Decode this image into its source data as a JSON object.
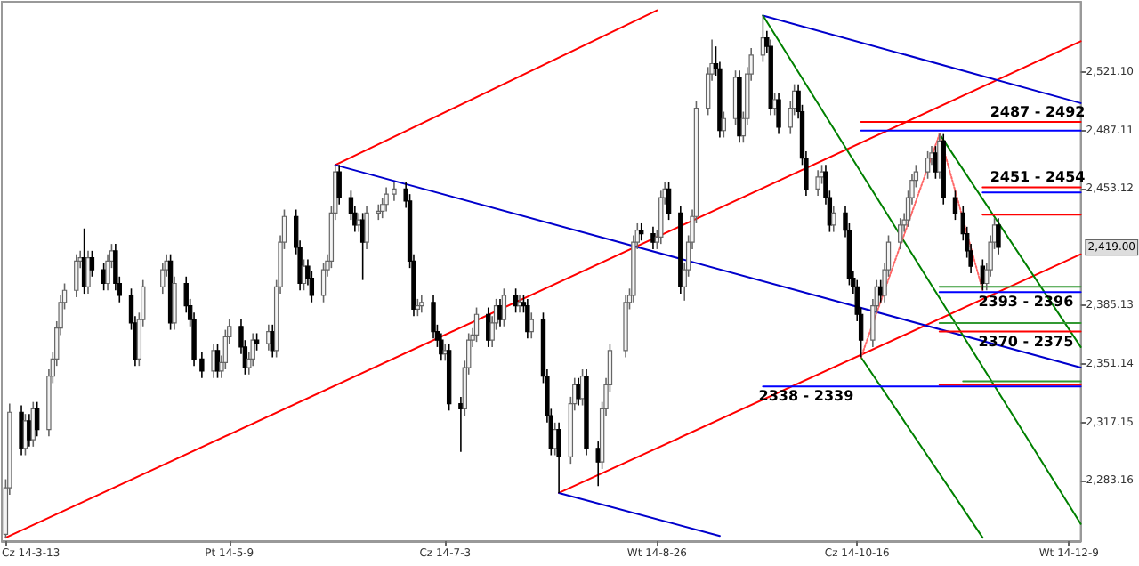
{
  "chart_data": {
    "type": "candlestick",
    "x": [
      "2014-03-13",
      "2014-03-14",
      "2014-03-17",
      "2014-03-18",
      "2014-03-19",
      "2014-03-20",
      "2014-03-21",
      "2014-03-24",
      "2014-03-25",
      "2014-03-26",
      "2014-03-27",
      "2014-03-28",
      "2014-03-31",
      "2014-04-01",
      "2014-04-02",
      "2014-04-03",
      "2014-04-04",
      "2014-04-07",
      "2014-04-08",
      "2014-04-09",
      "2014-04-10",
      "2014-04-11",
      "2014-04-14",
      "2014-04-15",
      "2014-04-16",
      "2014-04-17",
      "2014-04-22",
      "2014-04-23",
      "2014-04-24",
      "2014-04-25",
      "2014-04-28",
      "2014-04-29",
      "2014-04-30",
      "2014-05-02",
      "2014-05-05",
      "2014-05-06",
      "2014-05-07",
      "2014-05-08",
      "2014-05-09",
      "2014-05-12",
      "2014-05-13",
      "2014-05-14",
      "2014-05-15",
      "2014-05-16",
      "2014-05-19",
      "2014-05-20",
      "2014-05-21",
      "2014-05-22",
      "2014-05-23",
      "2014-05-26",
      "2014-05-27",
      "2014-05-28",
      "2014-05-29",
      "2014-05-30",
      "2014-06-02",
      "2014-06-03",
      "2014-06-04",
      "2014-06-05",
      "2014-06-06",
      "2014-06-09",
      "2014-06-10",
      "2014-06-11",
      "2014-06-12",
      "2014-06-13",
      "2014-06-16",
      "2014-06-17",
      "2014-06-18",
      "2014-06-20",
      "2014-06-23",
      "2014-06-24",
      "2014-06-25",
      "2014-06-26",
      "2014-06-27",
      "2014-06-30",
      "2014-07-01",
      "2014-07-02",
      "2014-07-03",
      "2014-07-04",
      "2014-07-07",
      "2014-07-08",
      "2014-07-09",
      "2014-07-10",
      "2014-07-11",
      "2014-07-14",
      "2014-07-15",
      "2014-07-16",
      "2014-07-17",
      "2014-07-18",
      "2014-07-21",
      "2014-07-22",
      "2014-07-23",
      "2014-07-24",
      "2014-07-25",
      "2014-07-28",
      "2014-07-29",
      "2014-07-30",
      "2014-07-31",
      "2014-08-01",
      "2014-08-04",
      "2014-08-05",
      "2014-08-06",
      "2014-08-07",
      "2014-08-08",
      "2014-08-11",
      "2014-08-12",
      "2014-08-13",
      "2014-08-14",
      "2014-08-18",
      "2014-08-19",
      "2014-08-20",
      "2014-08-21",
      "2014-08-22",
      "2014-08-25",
      "2014-08-26",
      "2014-08-27",
      "2014-08-28",
      "2014-08-29",
      "2014-09-01",
      "2014-09-02",
      "2014-09-03",
      "2014-09-04",
      "2014-09-05",
      "2014-09-08",
      "2014-09-09",
      "2014-09-10",
      "2014-09-11",
      "2014-09-12",
      "2014-09-15",
      "2014-09-16",
      "2014-09-17",
      "2014-09-18",
      "2014-09-19",
      "2014-09-22",
      "2014-09-23",
      "2014-09-24",
      "2014-09-25",
      "2014-09-26",
      "2014-09-29",
      "2014-09-30",
      "2014-10-01",
      "2014-10-02",
      "2014-10-03",
      "2014-10-06",
      "2014-10-07",
      "2014-10-08",
      "2014-10-09",
      "2014-10-10",
      "2014-10-13",
      "2014-10-14",
      "2014-10-15",
      "2014-10-16",
      "2014-10-17",
      "2014-10-20",
      "2014-10-21",
      "2014-10-22",
      "2014-10-23",
      "2014-10-24",
      "2014-10-27",
      "2014-10-28",
      "2014-10-29",
      "2014-10-30",
      "2014-10-31",
      "2014-11-03",
      "2014-11-04",
      "2014-11-05",
      "2014-11-06",
      "2014-11-07",
      "2014-11-10",
      "2014-11-12",
      "2014-11-13",
      "2014-11-14",
      "2014-11-17",
      "2014-11-18",
      "2014-11-19",
      "2014-11-20",
      "2014-11-21"
    ],
    "ohlc": [
      [
        2252,
        2284,
        2250,
        2279
      ],
      [
        2279,
        2328,
        2275,
        2323
      ],
      [
        2323,
        2327,
        2298,
        2302
      ],
      [
        2302,
        2322,
        2298,
        2318
      ],
      [
        2318,
        2322,
        2303,
        2307
      ],
      [
        2307,
        2329,
        2303,
        2325
      ],
      [
        2325,
        2329,
        2309,
        2313
      ],
      [
        2313,
        2348,
        2309,
        2344
      ],
      [
        2344,
        2358,
        2340,
        2354
      ],
      [
        2354,
        2376,
        2350,
        2372
      ],
      [
        2372,
        2391,
        2368,
        2387
      ],
      [
        2387,
        2398,
        2383,
        2394
      ],
      [
        2394,
        2415,
        2390,
        2411
      ],
      [
        2411,
        2417,
        2407,
        2413
      ],
      [
        2413,
        2430,
        2392,
        2396
      ],
      [
        2396,
        2417,
        2392,
        2413
      ],
      [
        2413,
        2417,
        2402,
        2406
      ],
      [
        2406,
        2410,
        2394,
        2398
      ],
      [
        2398,
        2415,
        2394,
        2411
      ],
      [
        2411,
        2421,
        2407,
        2417
      ],
      [
        2417,
        2421,
        2394,
        2398
      ],
      [
        2398,
        2402,
        2387,
        2391
      ],
      [
        2391,
        2395,
        2371,
        2375
      ],
      [
        2375,
        2379,
        2350,
        2354
      ],
      [
        2354,
        2381,
        2350,
        2377
      ],
      [
        2377,
        2400,
        2373,
        2396
      ],
      [
        2396,
        2410,
        2392,
        2406
      ],
      [
        2406,
        2415,
        2402,
        2411
      ],
      [
        2411,
        2415,
        2371,
        2375
      ],
      [
        2375,
        2402,
        2371,
        2398
      ],
      [
        2398,
        2402,
        2381,
        2385
      ],
      [
        2385,
        2389,
        2373,
        2377
      ],
      [
        2377,
        2381,
        2350,
        2354
      ],
      [
        2354,
        2358,
        2343,
        2347
      ],
      [
        2347,
        2363,
        2343,
        2359
      ],
      [
        2359,
        2363,
        2343,
        2347
      ],
      [
        2347,
        2356,
        2343,
        2352
      ],
      [
        2352,
        2371,
        2348,
        2367
      ],
      [
        2367,
        2377,
        2363,
        2373
      ],
      [
        2373,
        2377,
        2357,
        2361
      ],
      [
        2361,
        2365,
        2345,
        2349
      ],
      [
        2349,
        2358,
        2345,
        2354
      ],
      [
        2354,
        2369,
        2350,
        2365
      ],
      [
        2365,
        2369,
        2359,
        2363
      ],
      [
        2363,
        2374,
        2359,
        2370
      ],
      [
        2370,
        2374,
        2355,
        2359
      ],
      [
        2359,
        2400,
        2355,
        2396
      ],
      [
        2396,
        2426,
        2392,
        2422
      ],
      [
        2422,
        2441,
        2418,
        2437
      ],
      [
        2437,
        2441,
        2415,
        2419
      ],
      [
        2419,
        2423,
        2394,
        2398
      ],
      [
        2398,
        2412,
        2394,
        2408
      ],
      [
        2408,
        2412,
        2397,
        2401
      ],
      [
        2401,
        2405,
        2387,
        2391
      ],
      [
        2391,
        2410,
        2387,
        2406
      ],
      [
        2406,
        2415,
        2402,
        2411
      ],
      [
        2411,
        2443,
        2407,
        2439
      ],
      [
        2439,
        2467,
        2435,
        2463
      ],
      [
        2463,
        2467,
        2444,
        2448
      ],
      [
        2448,
        2452,
        2435,
        2439
      ],
      [
        2439,
        2443,
        2428,
        2432
      ],
      [
        2432,
        2439,
        2428,
        2435
      ],
      [
        2435,
        2439,
        2400,
        2422
      ],
      [
        2422,
        2443,
        2418,
        2439
      ],
      [
        2439,
        2444,
        2435,
        2440
      ],
      [
        2440,
        2448,
        2436,
        2444
      ],
      [
        2444,
        2454,
        2440,
        2450
      ],
      [
        2450,
        2457,
        2446,
        2453
      ],
      [
        2453,
        2457,
        2442,
        2446
      ],
      [
        2446,
        2450,
        2407,
        2411
      ],
      [
        2411,
        2415,
        2379,
        2383
      ],
      [
        2383,
        2389,
        2379,
        2385
      ],
      [
        2385,
        2391,
        2381,
        2387
      ],
      [
        2387,
        2391,
        2366,
        2370
      ],
      [
        2370,
        2374,
        2361,
        2365
      ],
      [
        2365,
        2369,
        2353,
        2357
      ],
      [
        2357,
        2363,
        2353,
        2359
      ],
      [
        2359,
        2363,
        2324,
        2328
      ],
      [
        2328,
        2332,
        2300,
        2325
      ],
      [
        2325,
        2353,
        2321,
        2349
      ],
      [
        2349,
        2369,
        2345,
        2365
      ],
      [
        2365,
        2372,
        2361,
        2368
      ],
      [
        2368,
        2384,
        2364,
        2380
      ],
      [
        2380,
        2384,
        2361,
        2365
      ],
      [
        2365,
        2379,
        2361,
        2375
      ],
      [
        2375,
        2389,
        2371,
        2385
      ],
      [
        2385,
        2389,
        2373,
        2377
      ],
      [
        2377,
        2395,
        2373,
        2391
      ],
      [
        2391,
        2395,
        2381,
        2385
      ],
      [
        2385,
        2391,
        2381,
        2387
      ],
      [
        2387,
        2391,
        2381,
        2385
      ],
      [
        2385,
        2389,
        2366,
        2370
      ],
      [
        2370,
        2381,
        2366,
        2377
      ],
      [
        2377,
        2381,
        2340,
        2344
      ],
      [
        2344,
        2348,
        2317,
        2321
      ],
      [
        2321,
        2325,
        2298,
        2302
      ],
      [
        2302,
        2317,
        2298,
        2313
      ],
      [
        2313,
        2317,
        2276,
        2297
      ],
      [
        2297,
        2332,
        2293,
        2328
      ],
      [
        2328,
        2343,
        2324,
        2339
      ],
      [
        2339,
        2343,
        2327,
        2331
      ],
      [
        2331,
        2348,
        2327,
        2344
      ],
      [
        2344,
        2348,
        2298,
        2302
      ],
      [
        2302,
        2306,
        2280,
        2294
      ],
      [
        2294,
        2329,
        2290,
        2325
      ],
      [
        2325,
        2343,
        2321,
        2339
      ],
      [
        2339,
        2363,
        2335,
        2359
      ],
      [
        2359,
        2391,
        2355,
        2387
      ],
      [
        2387,
        2395,
        2383,
        2391
      ],
      [
        2391,
        2426,
        2387,
        2422
      ],
      [
        2422,
        2433,
        2418,
        2429
      ],
      [
        2429,
        2433,
        2423,
        2427
      ],
      [
        2427,
        2431,
        2418,
        2422
      ],
      [
        2422,
        2429,
        2418,
        2425
      ],
      [
        2425,
        2452,
        2421,
        2448
      ],
      [
        2448,
        2457,
        2444,
        2453
      ],
      [
        2453,
        2457,
        2435,
        2439
      ],
      [
        2439,
        2443,
        2392,
        2396
      ],
      [
        2396,
        2410,
        2388,
        2406
      ],
      [
        2406,
        2426,
        2402,
        2422
      ],
      [
        2422,
        2441,
        2418,
        2437
      ],
      [
        2437,
        2504,
        2433,
        2500
      ],
      [
        2500,
        2524,
        2496,
        2520
      ],
      [
        2520,
        2540,
        2516,
        2526
      ],
      [
        2526,
        2536,
        2519,
        2523
      ],
      [
        2523,
        2527,
        2483,
        2487
      ],
      [
        2487,
        2498,
        2483,
        2494
      ],
      [
        2494,
        2522,
        2490,
        2518
      ],
      [
        2518,
        2522,
        2480,
        2484
      ],
      [
        2484,
        2498,
        2480,
        2494
      ],
      [
        2494,
        2524,
        2490,
        2520
      ],
      [
        2520,
        2535,
        2516,
        2531
      ],
      [
        2531,
        2554,
        2527,
        2541
      ],
      [
        2541,
        2545,
        2532,
        2536
      ],
      [
        2536,
        2540,
        2496,
        2500
      ],
      [
        2500,
        2509,
        2496,
        2505
      ],
      [
        2505,
        2509,
        2485,
        2489
      ],
      [
        2489,
        2504,
        2485,
        2500
      ],
      [
        2500,
        2514,
        2496,
        2510
      ],
      [
        2510,
        2514,
        2494,
        2498
      ],
      [
        2498,
        2502,
        2467,
        2471
      ],
      [
        2471,
        2475,
        2449,
        2453
      ],
      [
        2453,
        2464,
        2449,
        2460
      ],
      [
        2460,
        2467,
        2456,
        2463
      ],
      [
        2463,
        2467,
        2444,
        2448
      ],
      [
        2448,
        2452,
        2428,
        2432
      ],
      [
        2432,
        2443,
        2428,
        2439
      ],
      [
        2439,
        2443,
        2425,
        2429
      ],
      [
        2429,
        2433,
        2397,
        2401
      ],
      [
        2401,
        2405,
        2392,
        2396
      ],
      [
        2396,
        2400,
        2376,
        2380
      ],
      [
        2380,
        2384,
        2355,
        2365
      ],
      [
        2365,
        2389,
        2361,
        2385
      ],
      [
        2385,
        2400,
        2381,
        2396
      ],
      [
        2396,
        2400,
        2387,
        2391
      ],
      [
        2391,
        2410,
        2387,
        2406
      ],
      [
        2406,
        2426,
        2402,
        2422
      ],
      [
        2422,
        2436,
        2418,
        2432
      ],
      [
        2432,
        2439,
        2428,
        2435
      ],
      [
        2435,
        2452,
        2431,
        2448
      ],
      [
        2448,
        2462,
        2444,
        2458
      ],
      [
        2458,
        2467,
        2454,
        2463
      ],
      [
        2463,
        2475,
        2459,
        2471
      ],
      [
        2471,
        2478,
        2467,
        2474
      ],
      [
        2474,
        2478,
        2459,
        2463
      ],
      [
        2463,
        2485,
        2459,
        2481
      ],
      [
        2481,
        2485,
        2444,
        2448
      ],
      [
        2448,
        2452,
        2435,
        2439
      ],
      [
        2439,
        2443,
        2423,
        2427
      ],
      [
        2427,
        2431,
        2413,
        2417
      ],
      [
        2417,
        2421,
        2404,
        2408
      ],
      [
        2408,
        2412,
        2394,
        2398
      ],
      [
        2398,
        2410,
        2394,
        2406
      ],
      [
        2406,
        2426,
        2402,
        2422
      ],
      [
        2422,
        2436,
        2418,
        2432
      ],
      [
        2432,
        2436,
        2415,
        2419
      ]
    ],
    "series": [
      {
        "type": "line",
        "color": "#ff0000",
        "x": [
          "2014-03-13",
          "2014-12-12"
        ],
        "values": [
          2250,
          2539
        ]
      },
      {
        "type": "line",
        "color": "#ff0000",
        "x": [
          "2014-06-05",
          "2014-08-26"
        ],
        "values": [
          2467,
          2557
        ]
      },
      {
        "type": "line",
        "color": "#ff0000",
        "x": [
          "2014-08-01",
          "2014-12-12"
        ],
        "values": [
          2276,
          2415
        ]
      },
      {
        "type": "line",
        "color": "#0000cc",
        "x": [
          "2014-06-05",
          "2014-12-12"
        ],
        "values": [
          2467,
          2349
        ]
      },
      {
        "type": "line",
        "color": "#0000cc",
        "x": [
          "2014-09-22",
          "2014-12-12"
        ],
        "values": [
          2554,
          2503
        ]
      },
      {
        "type": "line",
        "color": "#0000cc",
        "x": [
          "2014-08-01",
          "2014-09-11"
        ],
        "values": [
          2276,
          2251
        ]
      },
      {
        "type": "line",
        "color": "#008000",
        "x": [
          "2014-09-22",
          "2014-12-12"
        ],
        "values": [
          2554,
          2258
        ]
      },
      {
        "type": "line",
        "color": "#008000",
        "x": [
          "2014-10-17",
          "2014-11-17"
        ],
        "values": [
          2355,
          2250
        ]
      },
      {
        "type": "line",
        "color": "#008000",
        "x": [
          "2014-11-06",
          "2014-12-12"
        ],
        "values": [
          2485,
          2361
        ]
      },
      {
        "type": "line",
        "color": "#ff6666",
        "line_style": "dotted",
        "x": [
          "2014-10-17",
          "2014-11-06",
          "2014-11-17"
        ],
        "values": [
          2355,
          2485,
          2394
        ]
      },
      {
        "type": "line",
        "color": "#ff0000",
        "x": [
          "2014-10-17",
          "2014-12-12"
        ],
        "values": [
          2492,
          2492
        ]
      },
      {
        "type": "line",
        "color": "#0000ff",
        "x": [
          "2014-10-17",
          "2014-12-12"
        ],
        "values": [
          2487,
          2487
        ]
      },
      {
        "type": "line",
        "color": "#ff0000",
        "x": [
          "2014-11-17",
          "2014-12-12"
        ],
        "values": [
          2454,
          2454
        ]
      },
      {
        "type": "line",
        "color": "#0000ff",
        "x": [
          "2014-11-17",
          "2014-12-12"
        ],
        "values": [
          2451,
          2451
        ]
      },
      {
        "type": "line",
        "color": "#ff0000",
        "x": [
          "2014-11-17",
          "2014-12-12"
        ],
        "values": [
          2438,
          2438
        ]
      },
      {
        "type": "line",
        "color": "#339933",
        "x": [
          "2014-11-06",
          "2014-12-12"
        ],
        "values": [
          2396,
          2396
        ]
      },
      {
        "type": "line",
        "color": "#0000ff",
        "x": [
          "2014-11-06",
          "2014-12-12"
        ],
        "values": [
          2393,
          2393
        ]
      },
      {
        "type": "line",
        "color": "#339933",
        "x": [
          "2014-11-06",
          "2014-12-12"
        ],
        "values": [
          2375,
          2375
        ]
      },
      {
        "type": "line",
        "color": "#ff0000",
        "x": [
          "2014-11-06",
          "2014-12-12"
        ],
        "values": [
          2370,
          2370
        ]
      },
      {
        "type": "line",
        "color": "#339933",
        "x": [
          "2014-11-12",
          "2014-12-12"
        ],
        "values": [
          2341,
          2341
        ]
      },
      {
        "type": "line",
        "color": "#ff0000",
        "x": [
          "2014-11-06",
          "2014-12-12"
        ],
        "values": [
          2339,
          2339
        ]
      },
      {
        "type": "line",
        "color": "#0000ff",
        "x": [
          "2014-09-22",
          "2014-12-12"
        ],
        "values": [
          2338,
          2338
        ]
      }
    ],
    "xlim": [
      "2014-03-12",
      "2014-12-12"
    ],
    "xticks": [
      {
        "value": "2014-03-13",
        "label": "Cz 14-3-13"
      },
      {
        "value": "2014-05-09",
        "label": "Pt 14-5-9"
      },
      {
        "value": "2014-07-03",
        "label": "Cz 14-7-3"
      },
      {
        "value": "2014-08-26",
        "label": "Wt 14-8-26"
      },
      {
        "value": "2014-10-16",
        "label": "Cz 14-10-16"
      },
      {
        "value": "2014-12-09",
        "label": "Wt 14-12-9"
      }
    ],
    "ylim": [
      2248,
      2562
    ],
    "yticks": [
      {
        "value": 2283.16,
        "label": "2,283.16"
      },
      {
        "value": 2317.15,
        "label": "2,317.15"
      },
      {
        "value": 2351.14,
        "label": "2,351.14"
      },
      {
        "value": 2385.13,
        "label": "2,385.13"
      },
      {
        "value": 2453.12,
        "label": "2,453.12"
      },
      {
        "value": 2487.11,
        "label": "2,487.11"
      },
      {
        "value": 2521.1,
        "label": "2,521.10"
      }
    ],
    "annotations": [
      {
        "text": "2487 - 2492",
        "x": "2014-12-01",
        "y": 2492
      },
      {
        "text": "2451 - 2454",
        "x": "2014-12-01",
        "y": 2454
      },
      {
        "text": "2393 - 2396",
        "x": "2014-11-28",
        "y": 2393
      },
      {
        "text": "2370 - 2375",
        "x": "2014-11-28",
        "y": 2370
      },
      {
        "text": "2338 - 2339",
        "x": "2014-10-03",
        "y": 2338
      },
      "2,419.00"
    ],
    "grid": false
  }
}
